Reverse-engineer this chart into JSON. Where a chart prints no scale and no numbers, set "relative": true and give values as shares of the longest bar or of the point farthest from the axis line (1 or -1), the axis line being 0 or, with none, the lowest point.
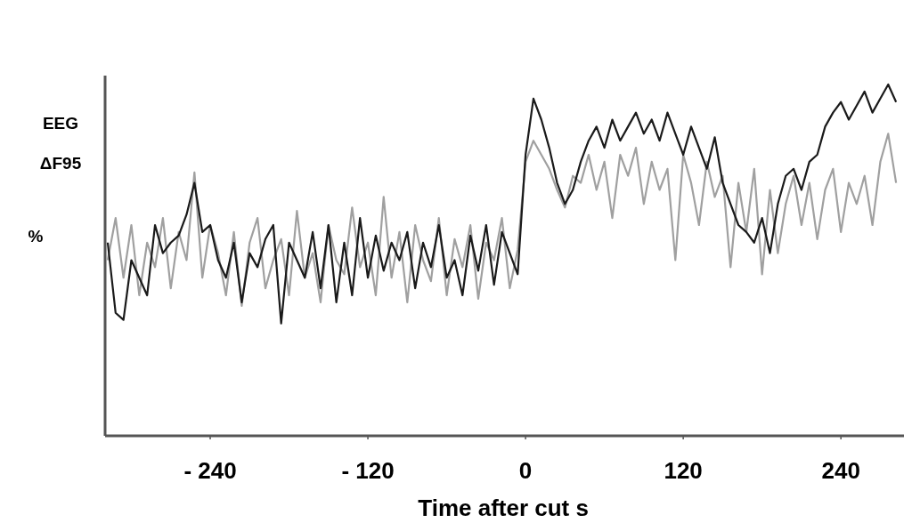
{
  "chart_data": {
    "type": "line",
    "relative": true,
    "xlabel": "Time after cut  s",
    "ylabel": "EEG\nΔF95\n%",
    "xlim": [
      -320,
      288
    ],
    "xticks": [
      {
        "value": -240,
        "label": "- 240"
      },
      {
        "value": -120,
        "label": "- 120"
      },
      0,
      120,
      240
    ],
    "x": [
      -318,
      -312,
      -306,
      -300,
      -294,
      -288,
      -282,
      -276,
      -270,
      -264,
      -258,
      -252,
      -246,
      -240,
      -234,
      -228,
      -222,
      -216,
      -210,
      -204,
      -198,
      -192,
      -186,
      -180,
      -174,
      -168,
      -162,
      -156,
      -150,
      -144,
      -138,
      -132,
      -126,
      -120,
      -114,
      -108,
      -102,
      -96,
      -90,
      -84,
      -78,
      -72,
      -66,
      -60,
      -54,
      -48,
      -42,
      -36,
      -30,
      -24,
      -18,
      -12,
      -6,
      0,
      6,
      12,
      18,
      24,
      30,
      36,
      42,
      48,
      54,
      60,
      66,
      72,
      78,
      84,
      90,
      96,
      102,
      108,
      114,
      120,
      126,
      132,
      138,
      144,
      150,
      156,
      162,
      168,
      174,
      180,
      186,
      192,
      198,
      204,
      210,
      216,
      222,
      228,
      234,
      240,
      246,
      252,
      258,
      264,
      270,
      276,
      282
    ],
    "series": [
      {
        "color": "#a0a0a0",
        "values": [
          0.5,
          0.62,
          0.45,
          0.6,
          0.4,
          0.55,
          0.48,
          0.62,
          0.42,
          0.58,
          0.5,
          0.75,
          0.45,
          0.6,
          0.52,
          0.4,
          0.58,
          0.37,
          0.55,
          0.62,
          0.42,
          0.5,
          0.56,
          0.4,
          0.64,
          0.45,
          0.52,
          0.38,
          0.6,
          0.5,
          0.46,
          0.65,
          0.48,
          0.55,
          0.4,
          0.68,
          0.45,
          0.58,
          0.38,
          0.6,
          0.5,
          0.44,
          0.62,
          0.4,
          0.56,
          0.48,
          0.6,
          0.39,
          0.55,
          0.5,
          0.62,
          0.42,
          0.53,
          0.78,
          0.84,
          0.8,
          0.76,
          0.7,
          0.65,
          0.74,
          0.72,
          0.8,
          0.7,
          0.78,
          0.62,
          0.8,
          0.74,
          0.82,
          0.66,
          0.78,
          0.7,
          0.76,
          0.5,
          0.8,
          0.72,
          0.6,
          0.78,
          0.68,
          0.74,
          0.48,
          0.72,
          0.58,
          0.76,
          0.46,
          0.7,
          0.52,
          0.66,
          0.74,
          0.6,
          0.72,
          0.56,
          0.7,
          0.76,
          0.58,
          0.72,
          0.66,
          0.74,
          0.6,
          0.78,
          0.86,
          0.72
        ]
      },
      {
        "color": "#1a1a1a",
        "values": [
          0.55,
          0.35,
          0.33,
          0.5,
          0.45,
          0.4,
          0.6,
          0.52,
          0.55,
          0.57,
          0.63,
          0.72,
          0.58,
          0.6,
          0.5,
          0.45,
          0.55,
          0.38,
          0.52,
          0.48,
          0.56,
          0.6,
          0.32,
          0.55,
          0.5,
          0.45,
          0.58,
          0.42,
          0.6,
          0.38,
          0.55,
          0.4,
          0.62,
          0.45,
          0.57,
          0.47,
          0.55,
          0.5,
          0.58,
          0.42,
          0.55,
          0.48,
          0.6,
          0.45,
          0.5,
          0.4,
          0.57,
          0.47,
          0.6,
          0.43,
          0.58,
          0.52,
          0.46,
          0.8,
          0.96,
          0.9,
          0.82,
          0.72,
          0.66,
          0.7,
          0.78,
          0.84,
          0.88,
          0.82,
          0.9,
          0.84,
          0.88,
          0.92,
          0.86,
          0.9,
          0.84,
          0.92,
          0.86,
          0.8,
          0.88,
          0.82,
          0.76,
          0.85,
          0.72,
          0.66,
          0.6,
          0.58,
          0.55,
          0.62,
          0.52,
          0.66,
          0.74,
          0.76,
          0.7,
          0.78,
          0.8,
          0.88,
          0.92,
          0.95,
          0.9,
          0.94,
          0.98,
          0.92,
          0.96,
          1.0,
          0.95
        ]
      }
    ]
  }
}
